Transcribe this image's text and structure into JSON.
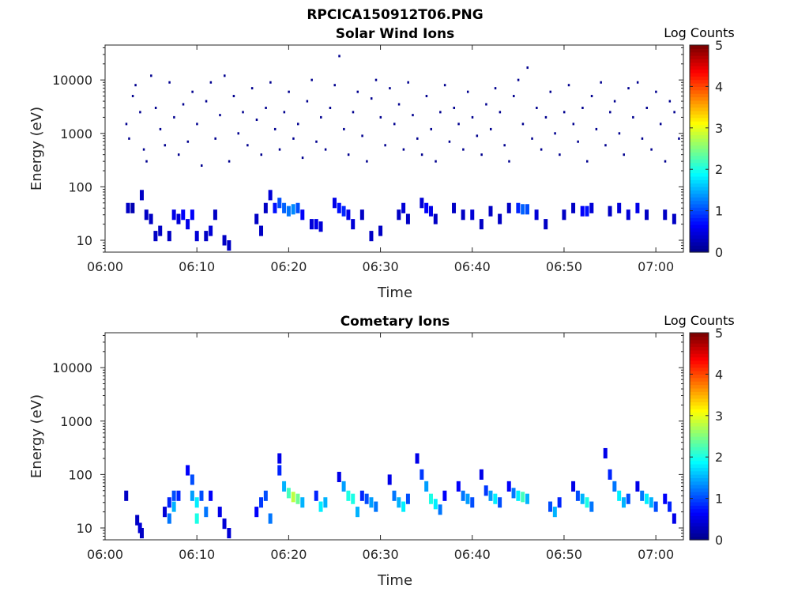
{
  "figure": {
    "title": "RPCICA150912T06.PNG",
    "colormap": [
      "#00008f",
      "#0000ff",
      "#0080ff",
      "#00ffff",
      "#80ff80",
      "#ffff00",
      "#ff8000",
      "#ff0000",
      "#800000"
    ]
  },
  "chart_data": [
    {
      "type": "heatmap",
      "title": "Solar Wind Ions",
      "xlabel": "Time",
      "ylabel": "Energy (eV)",
      "colorbar_label": "Log Counts",
      "x_unit": "minutes after 06:00",
      "xlim": [
        0,
        63
      ],
      "ylim": [
        6,
        45000
      ],
      "yscale": "log",
      "clim": [
        0,
        5
      ],
      "xtick_labels": [
        "06:00",
        "06:10",
        "06:20",
        "06:30",
        "06:40",
        "06:50",
        "07:00"
      ],
      "ytick_labels": [
        "10",
        "100",
        "1000",
        "10000"
      ],
      "colorbar_ticks": [
        "0",
        "1",
        "2",
        "3",
        "4",
        "5"
      ],
      "cells": [
        [
          2.5,
          40,
          0.3
        ],
        [
          3,
          40,
          0.2
        ],
        [
          4,
          70,
          0.3
        ],
        [
          4.5,
          30,
          0.3
        ],
        [
          5,
          25,
          0.3
        ],
        [
          5.5,
          12,
          0.3
        ],
        [
          6,
          15,
          0.3
        ],
        [
          7,
          12,
          0.3
        ],
        [
          7.5,
          30,
          0.5
        ],
        [
          8,
          25,
          0.4
        ],
        [
          8.5,
          30,
          0.6
        ],
        [
          9,
          20,
          0.5
        ],
        [
          9.5,
          30,
          0.6
        ],
        [
          10,
          12,
          0.4
        ],
        [
          11,
          12,
          0.3
        ],
        [
          11.5,
          15,
          0.4
        ],
        [
          12,
          30,
          0.3
        ],
        [
          13,
          10,
          0.3
        ],
        [
          13.5,
          8,
          0.3
        ],
        [
          16.5,
          25,
          0.3
        ],
        [
          17,
          15,
          0.3
        ],
        [
          17.5,
          40,
          0.3
        ],
        [
          18,
          70,
          0.4
        ],
        [
          18.5,
          40,
          0.7
        ],
        [
          19,
          50,
          1.0
        ],
        [
          19.5,
          40,
          1.1
        ],
        [
          20,
          35,
          1.2
        ],
        [
          20.5,
          38,
          1.3
        ],
        [
          21,
          40,
          1.0
        ],
        [
          21.5,
          30,
          0.6
        ],
        [
          22.5,
          20,
          0.4
        ],
        [
          23,
          20,
          0.5
        ],
        [
          23.5,
          18,
          0.4
        ],
        [
          25,
          50,
          0.5
        ],
        [
          25.5,
          40,
          0.7
        ],
        [
          26,
          35,
          0.8
        ],
        [
          26.5,
          30,
          0.5
        ],
        [
          27,
          20,
          0.4
        ],
        [
          28,
          30,
          0.3
        ],
        [
          29,
          12,
          0.3
        ],
        [
          30,
          15,
          0.3
        ],
        [
          32,
          30,
          0.3
        ],
        [
          32.5,
          40,
          0.4
        ],
        [
          33,
          25,
          0.3
        ],
        [
          34.5,
          50,
          0.4
        ],
        [
          35,
          40,
          0.6
        ],
        [
          35.5,
          35,
          0.5
        ],
        [
          36,
          25,
          0.3
        ],
        [
          38,
          40,
          0.3
        ],
        [
          39,
          30,
          0.3
        ],
        [
          40,
          30,
          0.4
        ],
        [
          41,
          20,
          0.3
        ],
        [
          42,
          35,
          0.3
        ],
        [
          43,
          25,
          0.3
        ],
        [
          44,
          40,
          0.3
        ],
        [
          45,
          40,
          0.8
        ],
        [
          45.5,
          38,
          1.1
        ],
        [
          46,
          38,
          1.0
        ],
        [
          47,
          30,
          0.4
        ],
        [
          48,
          20,
          0.3
        ],
        [
          50,
          30,
          0.3
        ],
        [
          51,
          40,
          0.3
        ],
        [
          52,
          35,
          0.6
        ],
        [
          52.5,
          35,
          0.7
        ],
        [
          53,
          40,
          0.4
        ],
        [
          55,
          35,
          0.3
        ],
        [
          56,
          40,
          0.4
        ],
        [
          57,
          30,
          0.4
        ],
        [
          58,
          40,
          0.5
        ],
        [
          59,
          30,
          0.3
        ],
        [
          61,
          30,
          0.3
        ],
        [
          62,
          25,
          0.3
        ]
      ],
      "sparse_points": [
        [
          2.3,
          1500
        ],
        [
          2.6,
          800
        ],
        [
          3,
          5000
        ],
        [
          3.3,
          8000
        ],
        [
          3.8,
          2500
        ],
        [
          4.2,
          500
        ],
        [
          4.5,
          300
        ],
        [
          5,
          12000
        ],
        [
          5.5,
          3000
        ],
        [
          6,
          1200
        ],
        [
          6.5,
          600
        ],
        [
          7,
          9000
        ],
        [
          7.5,
          2000
        ],
        [
          8,
          400
        ],
        [
          8.5,
          3500
        ],
        [
          9,
          700
        ],
        [
          9.5,
          6000
        ],
        [
          10,
          1500
        ],
        [
          10.5,
          250
        ],
        [
          11,
          4000
        ],
        [
          11.5,
          9000
        ],
        [
          12,
          800
        ],
        [
          12.5,
          2200
        ],
        [
          13,
          12000
        ],
        [
          13.5,
          300
        ],
        [
          14,
          5000
        ],
        [
          14.5,
          1000
        ],
        [
          15,
          2500
        ],
        [
          15.5,
          600
        ],
        [
          16,
          7000
        ],
        [
          16.5,
          1800
        ],
        [
          17,
          400
        ],
        [
          17.5,
          3000
        ],
        [
          18,
          9000
        ],
        [
          18.5,
          1200
        ],
        [
          19,
          500
        ],
        [
          19.5,
          2500
        ],
        [
          20,
          6000
        ],
        [
          20.5,
          800
        ],
        [
          21,
          1500
        ],
        [
          21.5,
          350
        ],
        [
          22,
          4000
        ],
        [
          22.5,
          10000
        ],
        [
          23,
          700
        ],
        [
          23.5,
          2000
        ],
        [
          24,
          500
        ],
        [
          24.5,
          3000
        ],
        [
          25,
          8000
        ],
        [
          25.5,
          28000
        ],
        [
          26,
          1200
        ],
        [
          26.5,
          400
        ],
        [
          27,
          2500
        ],
        [
          27.5,
          6000
        ],
        [
          28,
          900
        ],
        [
          28.5,
          300
        ],
        [
          29,
          4500
        ],
        [
          29.5,
          10000
        ],
        [
          30,
          2000
        ],
        [
          30.5,
          600
        ],
        [
          31,
          7000
        ],
        [
          31.5,
          1500
        ],
        [
          32,
          3500
        ],
        [
          32.5,
          500
        ],
        [
          33,
          9000
        ],
        [
          33.5,
          2200
        ],
        [
          34,
          800
        ],
        [
          34.5,
          400
        ],
        [
          35,
          5000
        ],
        [
          35.5,
          1200
        ],
        [
          36,
          300
        ],
        [
          36.5,
          2500
        ],
        [
          37,
          8000
        ],
        [
          37.5,
          700
        ],
        [
          38,
          3000
        ],
        [
          38.5,
          1500
        ],
        [
          39,
          500
        ],
        [
          39.5,
          6000
        ],
        [
          40,
          2000
        ],
        [
          40.5,
          900
        ],
        [
          41,
          400
        ],
        [
          41.5,
          3500
        ],
        [
          42,
          1200
        ],
        [
          42.5,
          7000
        ],
        [
          43,
          2500
        ],
        [
          43.5,
          600
        ],
        [
          44,
          300
        ],
        [
          44.5,
          5000
        ],
        [
          45,
          10000
        ],
        [
          45.5,
          1500
        ],
        [
          46,
          17000
        ],
        [
          46.5,
          800
        ],
        [
          47,
          3000
        ],
        [
          47.5,
          500
        ],
        [
          48,
          2000
        ],
        [
          48.5,
          6000
        ],
        [
          49,
          1000
        ],
        [
          49.5,
          400
        ],
        [
          50,
          2500
        ],
        [
          50.5,
          8000
        ],
        [
          51,
          1500
        ],
        [
          51.5,
          700
        ],
        [
          52,
          3000
        ],
        [
          52.5,
          300
        ],
        [
          53,
          5000
        ],
        [
          53.5,
          1200
        ],
        [
          54,
          9000
        ],
        [
          54.5,
          600
        ],
        [
          55,
          2500
        ],
        [
          55.5,
          4000
        ],
        [
          56,
          1000
        ],
        [
          56.5,
          400
        ],
        [
          57,
          7000
        ],
        [
          57.5,
          2000
        ],
        [
          58,
          9000
        ],
        [
          58.5,
          800
        ],
        [
          59,
          3000
        ],
        [
          59.5,
          500
        ],
        [
          60,
          6000
        ],
        [
          60.5,
          1500
        ],
        [
          61,
          300
        ],
        [
          61.5,
          4000
        ],
        [
          62,
          2500
        ],
        [
          62.5,
          800
        ]
      ]
    },
    {
      "type": "heatmap",
      "title": "Cometary Ions",
      "xlabel": "Time",
      "ylabel": "Energy (eV)",
      "colorbar_label": "Log Counts",
      "x_unit": "minutes after 06:00",
      "xlim": [
        0,
        63
      ],
      "ylim": [
        6,
        45000
      ],
      "yscale": "log",
      "clim": [
        0,
        5
      ],
      "xtick_labels": [
        "06:00",
        "06:10",
        "06:20",
        "06:30",
        "06:40",
        "06:50",
        "07:00"
      ],
      "ytick_labels": [
        "10",
        "100",
        "1000",
        "10000"
      ],
      "colorbar_ticks": [
        "0",
        "1",
        "2",
        "3",
        "4",
        "5"
      ],
      "cells": [
        [
          2.3,
          40,
          0.3
        ],
        [
          3.5,
          14,
          0.3
        ],
        [
          3.8,
          10,
          0.4
        ],
        [
          4,
          8,
          0.3
        ],
        [
          6.5,
          20,
          0.4
        ],
        [
          7,
          30,
          0.8
        ],
        [
          7,
          15,
          1.2
        ],
        [
          7.5,
          40,
          1.0
        ],
        [
          7.5,
          25,
          1.5
        ],
        [
          8,
          40,
          0.8
        ],
        [
          9,
          120,
          0.6
        ],
        [
          9.5,
          80,
          1.0
        ],
        [
          9.5,
          40,
          1.4
        ],
        [
          10,
          30,
          1.8
        ],
        [
          10,
          15,
          2.0
        ],
        [
          10.5,
          40,
          1.0
        ],
        [
          11,
          20,
          1.2
        ],
        [
          11.5,
          40,
          0.6
        ],
        [
          12.5,
          20,
          0.5
        ],
        [
          13,
          12,
          0.4
        ],
        [
          13.5,
          8,
          0.4
        ],
        [
          16.5,
          20,
          0.6
        ],
        [
          17,
          30,
          0.9
        ],
        [
          17.5,
          40,
          1.0
        ],
        [
          18,
          15,
          1.2
        ],
        [
          19,
          200,
          0.5
        ],
        [
          19,
          120,
          0.8
        ],
        [
          19.5,
          60,
          1.5
        ],
        [
          20,
          45,
          2.2
        ],
        [
          20.5,
          38,
          2.8
        ],
        [
          21,
          35,
          2.4
        ],
        [
          21.5,
          30,
          1.5
        ],
        [
          23,
          40,
          0.8
        ],
        [
          23.5,
          25,
          1.8
        ],
        [
          24,
          30,
          1.5
        ],
        [
          25.5,
          90,
          0.5
        ],
        [
          26,
          60,
          1.4
        ],
        [
          26.5,
          40,
          2.0
        ],
        [
          27,
          35,
          2.0
        ],
        [
          27.5,
          20,
          1.5
        ],
        [
          28,
          40,
          0.8
        ],
        [
          28.5,
          35,
          1.0
        ],
        [
          29,
          30,
          1.4
        ],
        [
          29.5,
          25,
          1.2
        ],
        [
          31,
          80,
          0.5
        ],
        [
          31.5,
          40,
          1.2
        ],
        [
          32,
          30,
          1.5
        ],
        [
          32.5,
          25,
          1.8
        ],
        [
          33,
          35,
          1.0
        ],
        [
          34,
          200,
          0.5
        ],
        [
          34.5,
          100,
          0.9
        ],
        [
          35,
          60,
          1.4
        ],
        [
          35.5,
          35,
          2.0
        ],
        [
          36,
          28,
          1.8
        ],
        [
          36.5,
          22,
          1.2
        ],
        [
          37,
          40,
          0.6
        ],
        [
          38.5,
          60,
          0.6
        ],
        [
          39,
          40,
          1.2
        ],
        [
          39.5,
          35,
          1.4
        ],
        [
          40,
          30,
          1.0
        ],
        [
          41,
          100,
          0.5
        ],
        [
          41.5,
          50,
          0.9
        ],
        [
          42,
          40,
          1.4
        ],
        [
          42.5,
          35,
          1.8
        ],
        [
          43,
          30,
          1.0
        ],
        [
          44,
          60,
          0.6
        ],
        [
          44.5,
          45,
          1.2
        ],
        [
          45,
          40,
          1.8
        ],
        [
          45.5,
          38,
          2.2
        ],
        [
          46,
          35,
          1.5
        ],
        [
          48.5,
          25,
          1.0
        ],
        [
          49,
          20,
          1.5
        ],
        [
          49.5,
          30,
          0.8
        ],
        [
          51,
          60,
          0.5
        ],
        [
          51.5,
          40,
          1.0
        ],
        [
          52,
          35,
          1.5
        ],
        [
          52.5,
          30,
          2.0
        ],
        [
          53,
          25,
          1.2
        ],
        [
          54.5,
          250,
          0.5
        ],
        [
          55,
          100,
          0.8
        ],
        [
          55.5,
          60,
          1.2
        ],
        [
          56,
          40,
          1.8
        ],
        [
          56.5,
          30,
          1.5
        ],
        [
          57,
          35,
          1.0
        ],
        [
          58,
          60,
          0.5
        ],
        [
          58.5,
          40,
          1.2
        ],
        [
          59,
          35,
          1.8
        ],
        [
          59.5,
          30,
          1.5
        ],
        [
          60,
          25,
          1.0
        ],
        [
          61,
          35,
          0.6
        ],
        [
          61.5,
          25,
          0.8
        ],
        [
          62,
          15,
          0.5
        ]
      ]
    }
  ]
}
